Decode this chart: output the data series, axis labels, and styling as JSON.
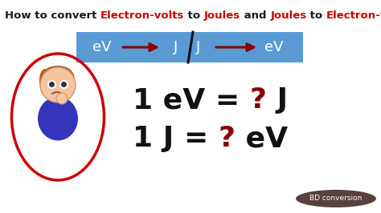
{
  "bg_color": "#ffffff",
  "title_parts": [
    {
      "text": "How to convert ",
      "color": "#1a1a1a"
    },
    {
      "text": "Electron-volts",
      "color": "#cc0000"
    },
    {
      "text": " to ",
      "color": "#1a1a1a"
    },
    {
      "text": "Joules",
      "color": "#cc0000"
    },
    {
      "text": " and ",
      "color": "#1a1a1a"
    },
    {
      "text": "Joules",
      "color": "#cc0000"
    },
    {
      "text": " to ",
      "color": "#1a1a1a"
    },
    {
      "text": "Electron-volts",
      "color": "#cc0000"
    },
    {
      "text": "?",
      "color": "#1a1a1a"
    }
  ],
  "banner_color": "#5b9bd5",
  "banner_text_color": "#ffffff",
  "arrow_color": "#8b0000",
  "divider_color": "#111111",
  "eq_line1": [
    {
      "text": "1 eV = ",
      "color": "#111111"
    },
    {
      "text": "?",
      "color": "#8b0000"
    },
    {
      "text": " J",
      "color": "#111111"
    }
  ],
  "eq_line2": [
    {
      "text": "1 J = ",
      "color": "#111111"
    },
    {
      "text": "?",
      "color": "#8b0000"
    },
    {
      "text": " eV",
      "color": "#111111"
    }
  ],
  "ellipse_color": "#cc0000",
  "badge_bg": "#5a4040",
  "badge_text": "BD conversion",
  "badge_text_color": "#ffffff",
  "title_fontsize": 9.5,
  "eq_fontsize": 26,
  "banner_fontsize": 13
}
